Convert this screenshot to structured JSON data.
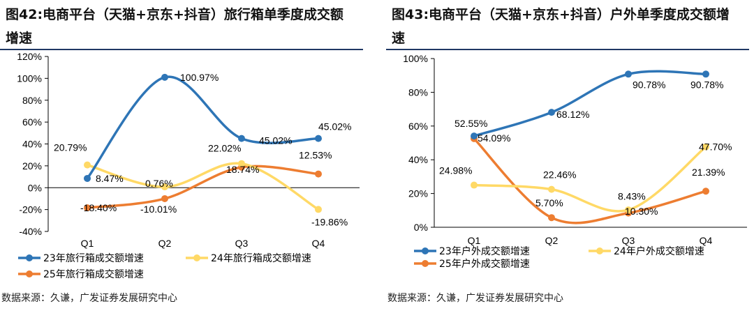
{
  "chart_data": [
    {
      "type": "line",
      "figure_label": "图42:",
      "title": "电商平台（天猫+京东+抖音）旅行箱单季度成交额增速",
      "categories": [
        "Q1",
        "Q2",
        "Q3",
        "Q4"
      ],
      "ylim": [
        -40,
        120
      ],
      "yticks": [
        -40,
        -20,
        0,
        20,
        40,
        60,
        80,
        100,
        120
      ],
      "ytick_labels": [
        "-40%",
        "-20%",
        "0%",
        "20%",
        "40%",
        "60%",
        "80%",
        "100%",
        "120%"
      ],
      "series": [
        {
          "name": "23年旅行箱成交额增速",
          "color": "#2e75b6",
          "values": [
            8.47,
            100.97,
            45.02,
            45.02
          ],
          "labels": [
            "8.47%",
            "100.97%",
            "45.02%",
            "45.02%"
          ]
        },
        {
          "name": "24年旅行箱成交额增速",
          "color": "#ffd966",
          "values": [
            20.79,
            0.76,
            22.02,
            -19.86
          ],
          "labels": [
            "20.79%",
            "0.76%",
            "22.02%",
            "-19.86%"
          ]
        },
        {
          "name": "25年旅行箱成交额增速",
          "color": "#ed7d31",
          "values": [
            -18.4,
            -10.01,
            18.74,
            12.53
          ],
          "labels": [
            "-18.40%",
            "-10.01%",
            "18.74%",
            "12.53%"
          ]
        }
      ],
      "source": "数据来源：久谦，广发证券发展研究中心"
    },
    {
      "type": "line",
      "figure_label": "图43:",
      "title": "电商平台（天猫+京东+抖音）户外单季度成交额增速",
      "categories": [
        "Q1",
        "Q2",
        "Q3",
        "Q4"
      ],
      "ylim": [
        0,
        100
      ],
      "yticks": [
        0,
        20,
        40,
        60,
        80,
        100
      ],
      "ytick_labels": [
        "0%",
        "20%",
        "40%",
        "60%",
        "80%",
        "100%"
      ],
      "series": [
        {
          "name": "23年户外成交额增速",
          "color": "#2e75b6",
          "values": [
            54.09,
            68.12,
            90.78,
            90.78
          ],
          "labels": [
            "54.09%",
            "68.12%",
            "90.78%",
            "90.78%"
          ]
        },
        {
          "name": "24年户外成交额增速",
          "color": "#ffd966",
          "values": [
            24.98,
            22.46,
            10.3,
            47.7
          ],
          "labels": [
            "24.98%",
            "22.46%",
            "10.30%",
            "47.70%"
          ]
        },
        {
          "name": "25年户外成交额增速",
          "color": "#ed7d31",
          "values": [
            52.55,
            5.7,
            8.43,
            21.39
          ],
          "labels": [
            "52.55%",
            "5.70%",
            "8.43%",
            "21.39%"
          ]
        }
      ],
      "source": "数据来源：久谦，广发证券发展研究中心"
    }
  ]
}
